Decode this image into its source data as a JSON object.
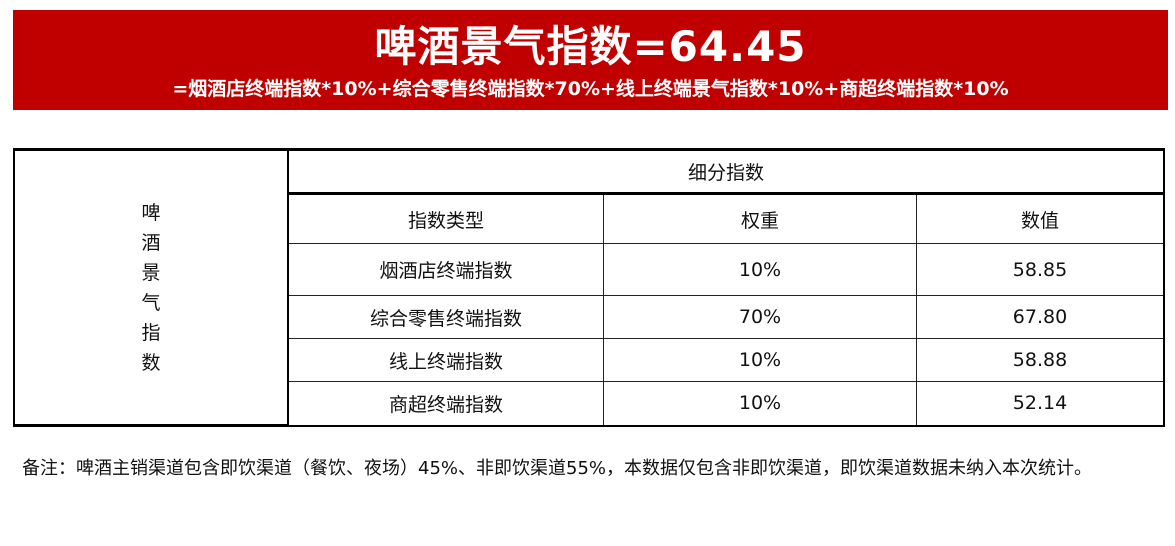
{
  "banner": {
    "title": "啤酒景气指数=64.45",
    "formula": "=烟酒店终端指数*10%+综合零售终端指数*70%+线上终端景气指数*10%+商超终端指数*10%",
    "color": "#c00000"
  },
  "table": {
    "row_header": "啤酒景气指数",
    "group_header": "细分指数",
    "columns": [
      "指数类型",
      "权重",
      "数值"
    ],
    "rows": [
      {
        "type": "烟酒店终端指数",
        "weight": "10%",
        "value": "58.85"
      },
      {
        "type": "综合零售终端指数",
        "weight": "70%",
        "value": "67.80"
      },
      {
        "type": "线上终端指数",
        "weight": "10%",
        "value": "58.88"
      },
      {
        "type": "商超终端指数",
        "weight": "10%",
        "value": "52.14"
      }
    ]
  },
  "note": "备注：啤酒主销渠道包含即饮渠道（餐饮、夜场）45%、非即饮渠道55%，本数据仅包含非即饮渠道，即饮渠道数据未纳入本次统计。"
}
